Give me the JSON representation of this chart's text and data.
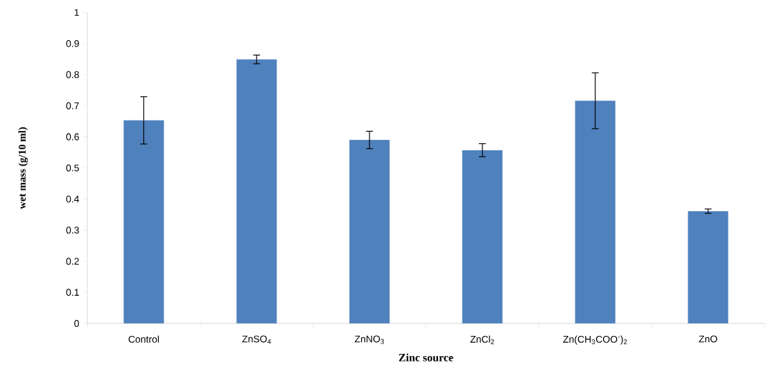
{
  "chart_data": {
    "type": "bar",
    "xlabel": "Zinc source",
    "ylabel": "wet mass (g/10 ml)",
    "categories": [
      "Control",
      "ZnSO$_{4}$",
      "ZnNO$_{3}$",
      "ZnCl$_{2}$",
      "Zn(CH$_{3}$COO$^{-}$)$_{2}$",
      "ZnO"
    ],
    "values": [
      0.653,
      0.849,
      0.59,
      0.557,
      0.716,
      0.361
    ],
    "errors": [
      0.076,
      0.014,
      0.028,
      0.021,
      0.09,
      0.007
    ],
    "color": "#4f81bd",
    "ylim": [
      0,
      1
    ],
    "yticks": [
      0,
      0.1,
      0.2,
      0.3,
      0.4,
      0.5,
      0.6,
      0.7,
      0.8,
      0.9,
      1
    ],
    "grid": false
  }
}
